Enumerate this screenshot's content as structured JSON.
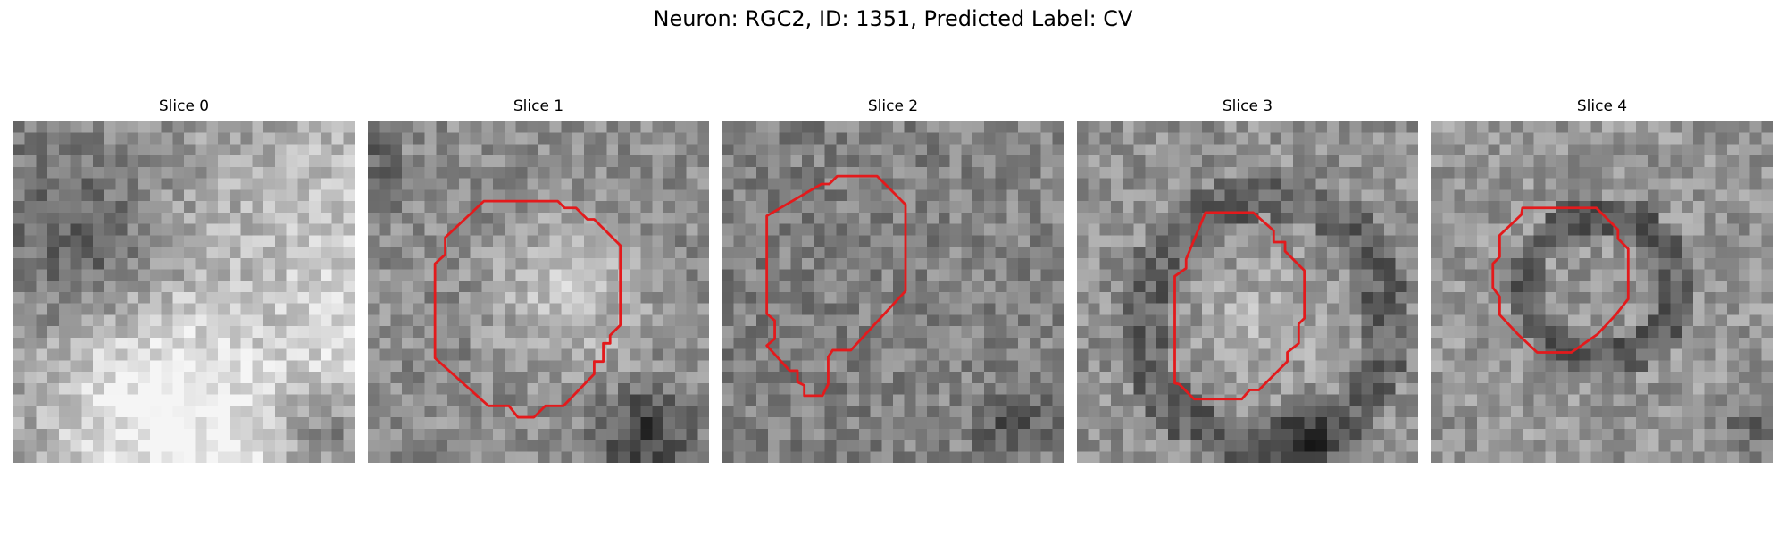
{
  "figure": {
    "title": "Neuron: RGC2, ID: 1351, Predicted Label: CV"
  },
  "colors": {
    "contour": "#e31a1c",
    "background": "#ffffff"
  },
  "panels": [
    {
      "title": "Slice 0",
      "has_contour": false
    },
    {
      "title": "Slice 1",
      "has_contour": true
    },
    {
      "title": "Slice 2",
      "has_contour": true
    },
    {
      "title": "Slice 3",
      "has_contour": true
    },
    {
      "title": "Slice 4",
      "has_contour": true
    }
  ]
}
